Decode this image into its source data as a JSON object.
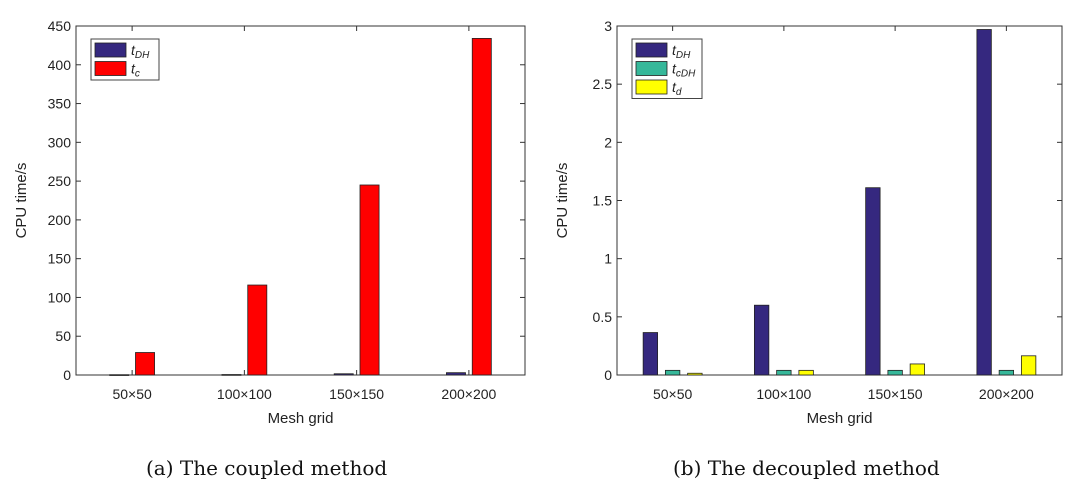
{
  "chart_data": [
    {
      "type": "bar",
      "caption": "(a) The coupled method",
      "xlabel": "Mesh grid",
      "ylabel": "CPU time/s",
      "categories": [
        "50×50",
        "100×100",
        "150×150",
        "200×200"
      ],
      "ylim": [
        0,
        450
      ],
      "yticks": [
        0,
        50,
        100,
        150,
        200,
        250,
        300,
        350,
        400,
        450
      ],
      "legend_position": "top-left",
      "series": [
        {
          "name": "t",
          "sub": "DH",
          "color": "#35287f",
          "values": [
            0.4,
            0.6,
            1.6,
            3
          ]
        },
        {
          "name": "t",
          "sub": "c",
          "color": "#ff0000",
          "values": [
            29,
            116,
            245,
            434
          ]
        }
      ]
    },
    {
      "type": "bar",
      "caption": "(b) The decoupled method",
      "xlabel": "Mesh grid",
      "ylabel": "CPU time/s",
      "categories": [
        "50×50",
        "100×100",
        "150×150",
        "200×200"
      ],
      "ylim": [
        0,
        3
      ],
      "yticks": [
        0,
        0.5,
        1,
        1.5,
        2,
        2.5,
        3
      ],
      "legend_position": "top-left",
      "series": [
        {
          "name": "t",
          "sub": "DH",
          "color": "#35287f",
          "values": [
            0.365,
            0.6,
            1.61,
            2.97
          ]
        },
        {
          "name": "t",
          "sub": "cDH",
          "color": "#36b89a",
          "values": [
            0.04,
            0.04,
            0.04,
            0.04
          ]
        },
        {
          "name": "t",
          "sub": "d",
          "color": "#ffff00",
          "values": [
            0.015,
            0.04,
            0.095,
            0.165
          ]
        }
      ]
    }
  ]
}
